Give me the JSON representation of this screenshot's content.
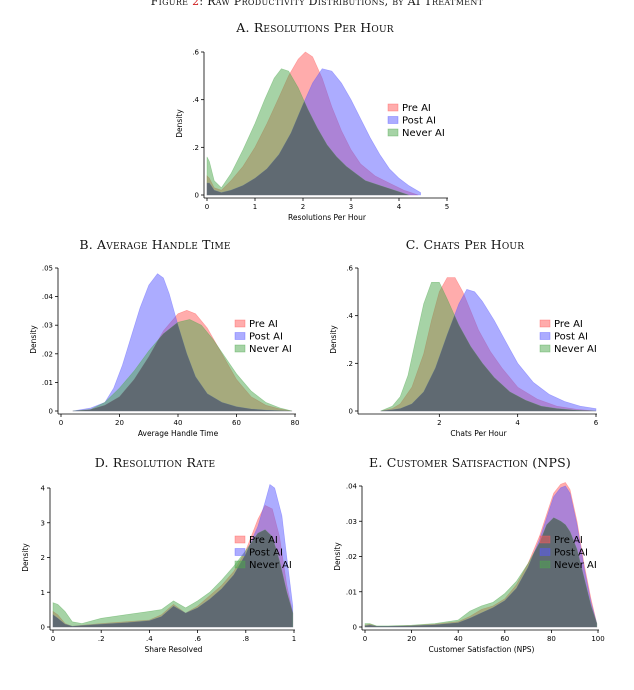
{
  "figure_title": {
    "prefix": "Figure",
    "number": "2",
    "text": ": Raw Productivity Distributions, by AI Treatment"
  },
  "colors": {
    "pre_ai": "#ff5a5a",
    "post_ai": "#5a5aff",
    "never_ai": "#4ea84e",
    "overlap": "#606a72"
  },
  "chart_data": [
    {
      "id": "A",
      "type": "area",
      "title": "A. Resolutions Per Hour",
      "xlabel": "Resolutions Per Hour",
      "ylabel": "Density",
      "xlim": [
        0,
        5
      ],
      "ylim": [
        0,
        0.6
      ],
      "xticks": [
        0,
        1,
        2,
        3,
        4,
        5
      ],
      "xticklabels": [
        "0",
        "1",
        "2",
        "3",
        "4",
        "5"
      ],
      "yticks": [
        0,
        0.2,
        0.4,
        0.6
      ],
      "yticklabels": [
        "0",
        ".2",
        ".4",
        ".6"
      ],
      "legend": [
        "Pre AI",
        "Post AI",
        "Never AI"
      ],
      "legend_position": "right",
      "series": [
        {
          "name": "Pre AI",
          "x": [
            0,
            0.05,
            0.15,
            0.3,
            0.5,
            0.75,
            1.0,
            1.25,
            1.5,
            1.7,
            1.9,
            2.05,
            2.2,
            2.4,
            2.6,
            2.8,
            3.0,
            3.2,
            3.5,
            3.8,
            4.1,
            4.4
          ],
          "y": [
            0.08,
            0.07,
            0.03,
            0.02,
            0.06,
            0.12,
            0.2,
            0.3,
            0.41,
            0.5,
            0.57,
            0.6,
            0.58,
            0.49,
            0.37,
            0.27,
            0.19,
            0.13,
            0.08,
            0.05,
            0.02,
            0.0
          ]
        },
        {
          "name": "Post AI",
          "x": [
            0,
            0.05,
            0.15,
            0.3,
            0.5,
            0.75,
            1.0,
            1.25,
            1.5,
            1.75,
            2.0,
            2.2,
            2.4,
            2.6,
            2.8,
            3.0,
            3.2,
            3.4,
            3.6,
            3.8,
            4.0,
            4.2,
            4.45
          ],
          "y": [
            0.05,
            0.05,
            0.02,
            0.01,
            0.02,
            0.04,
            0.07,
            0.11,
            0.17,
            0.26,
            0.38,
            0.47,
            0.53,
            0.52,
            0.47,
            0.4,
            0.32,
            0.24,
            0.17,
            0.11,
            0.07,
            0.04,
            0.01
          ]
        },
        {
          "name": "Never AI",
          "x": [
            0,
            0.05,
            0.15,
            0.3,
            0.5,
            0.75,
            1.0,
            1.2,
            1.4,
            1.55,
            1.7,
            1.9,
            2.1,
            2.3,
            2.5,
            2.7,
            2.9,
            3.1,
            3.3,
            3.6,
            3.9,
            4.2
          ],
          "y": [
            0.16,
            0.14,
            0.06,
            0.03,
            0.09,
            0.19,
            0.3,
            0.4,
            0.49,
            0.53,
            0.52,
            0.45,
            0.36,
            0.28,
            0.21,
            0.16,
            0.12,
            0.09,
            0.06,
            0.04,
            0.02,
            0.0
          ]
        }
      ]
    },
    {
      "id": "B",
      "type": "area",
      "title": "B. Average Handle Time",
      "xlabel": "Average Handle Time",
      "ylabel": "Density",
      "xlim": [
        0,
        80
      ],
      "ylim": [
        0,
        0.05
      ],
      "xticks": [
        0,
        20,
        40,
        60,
        80
      ],
      "xticklabels": [
        "0",
        "20",
        "40",
        "60",
        "80"
      ],
      "yticks": [
        0,
        0.01,
        0.02,
        0.03,
        0.04,
        0.05
      ],
      "yticklabels": [
        "0",
        ".01",
        ".02",
        ".03",
        ".04",
        ".05"
      ],
      "legend": [
        "Pre AI",
        "Post AI",
        "Never AI"
      ],
      "legend_position": "right",
      "series": [
        {
          "name": "Pre AI",
          "x": [
            4,
            10,
            15,
            20,
            25,
            30,
            35,
            40,
            43,
            46,
            50,
            55,
            60,
            65,
            70,
            75,
            79
          ],
          "y": [
            0.0,
            0.0005,
            0.002,
            0.005,
            0.011,
            0.019,
            0.028,
            0.034,
            0.0352,
            0.034,
            0.029,
            0.02,
            0.011,
            0.005,
            0.002,
            0.0007,
            0.0
          ]
        },
        {
          "name": "Post AI",
          "x": [
            4,
            10,
            15,
            18,
            21,
            24,
            27,
            30,
            33,
            35,
            37,
            40,
            43,
            46,
            50,
            55,
            60,
            65,
            70,
            75,
            79
          ],
          "y": [
            0.0,
            0.001,
            0.003,
            0.008,
            0.016,
            0.026,
            0.036,
            0.044,
            0.048,
            0.0465,
            0.041,
            0.03,
            0.02,
            0.012,
            0.006,
            0.003,
            0.0015,
            0.0007,
            0.0003,
            0.0001,
            0.0
          ]
        },
        {
          "name": "Never AI",
          "x": [
            4,
            10,
            15,
            20,
            25,
            30,
            35,
            40,
            44,
            48,
            52,
            56,
            60,
            65,
            70,
            75,
            79
          ],
          "y": [
            0.0,
            0.0005,
            0.003,
            0.008,
            0.014,
            0.021,
            0.027,
            0.031,
            0.032,
            0.03,
            0.025,
            0.019,
            0.013,
            0.007,
            0.003,
            0.001,
            0.0
          ]
        }
      ]
    },
    {
      "id": "C",
      "type": "area",
      "title": "C. Chats Per Hour",
      "xlabel": "Chats Per Hour",
      "ylabel": "Density",
      "xlim": [
        0,
        6
      ],
      "ylim": [
        0,
        0.6
      ],
      "xticks": [
        2,
        4,
        6
      ],
      "xticklabels": [
        "2",
        "4",
        "6"
      ],
      "yticks": [
        0,
        0.2,
        0.4,
        0.6
      ],
      "yticklabels": [
        "0",
        ".2",
        ".4",
        ".6"
      ],
      "legend": [
        "Pre AI",
        "Post AI",
        "Never AI"
      ],
      "legend_position": "right",
      "series": [
        {
          "name": "Pre AI",
          "x": [
            0.5,
            0.8,
            1.0,
            1.3,
            1.6,
            1.8,
            2.0,
            2.2,
            2.4,
            2.6,
            2.8,
            3.0,
            3.3,
            3.6,
            4.0,
            4.5,
            5.0,
            5.5,
            6.0
          ],
          "y": [
            0.0,
            0.01,
            0.03,
            0.1,
            0.24,
            0.38,
            0.5,
            0.56,
            0.56,
            0.5,
            0.42,
            0.34,
            0.25,
            0.18,
            0.1,
            0.05,
            0.02,
            0.007,
            0.0
          ]
        },
        {
          "name": "Post AI",
          "x": [
            0.5,
            0.8,
            1.0,
            1.3,
            1.6,
            1.9,
            2.2,
            2.5,
            2.7,
            2.9,
            3.1,
            3.4,
            3.7,
            4.0,
            4.4,
            4.8,
            5.2,
            5.6,
            6.0
          ],
          "y": [
            0.0,
            0.005,
            0.01,
            0.03,
            0.08,
            0.18,
            0.32,
            0.45,
            0.51,
            0.5,
            0.46,
            0.38,
            0.29,
            0.2,
            0.12,
            0.07,
            0.04,
            0.02,
            0.01
          ]
        },
        {
          "name": "Never AI",
          "x": [
            0.5,
            0.8,
            1.0,
            1.2,
            1.4,
            1.6,
            1.8,
            2.0,
            2.2,
            2.5,
            2.8,
            3.1,
            3.4,
            3.8,
            4.2,
            4.6,
            5.0,
            5.5,
            6.0
          ],
          "y": [
            0.0,
            0.02,
            0.06,
            0.15,
            0.3,
            0.45,
            0.54,
            0.54,
            0.47,
            0.36,
            0.27,
            0.2,
            0.14,
            0.08,
            0.045,
            0.02,
            0.01,
            0.003,
            0.0
          ]
        }
      ]
    },
    {
      "id": "D",
      "type": "area",
      "title": "D. Resolution Rate",
      "xlabel": "Share Resolved",
      "ylabel": "Density",
      "xlim": [
        0,
        1
      ],
      "ylim": [
        0,
        4
      ],
      "xticks": [
        0,
        0.2,
        0.4,
        0.6,
        0.8,
        1
      ],
      "xticklabels": [
        "0",
        ".2",
        ".4",
        ".6",
        ".8",
        "1"
      ],
      "yticks": [
        0,
        1,
        2,
        3,
        4
      ],
      "yticklabels": [
        "0",
        "1",
        "2",
        "3",
        "4"
      ],
      "legend": [
        "Pre AI",
        "Post AI",
        "Never AI"
      ],
      "legend_position": "right",
      "series": [
        {
          "name": "Pre AI",
          "x": [
            0,
            0.02,
            0.05,
            0.08,
            0.12,
            0.2,
            0.3,
            0.4,
            0.45,
            0.5,
            0.55,
            0.6,
            0.65,
            0.7,
            0.75,
            0.8,
            0.85,
            0.88,
            0.91,
            0.94,
            0.97,
            0.995
          ],
          "y": [
            0.45,
            0.35,
            0.1,
            0.02,
            0.05,
            0.1,
            0.15,
            0.2,
            0.35,
            0.65,
            0.4,
            0.6,
            0.9,
            1.2,
            1.6,
            2.2,
            3.1,
            3.5,
            3.4,
            2.6,
            1.2,
            0.4
          ]
        },
        {
          "name": "Post AI",
          "x": [
            0,
            0.02,
            0.05,
            0.08,
            0.12,
            0.2,
            0.3,
            0.4,
            0.45,
            0.5,
            0.55,
            0.6,
            0.65,
            0.7,
            0.75,
            0.8,
            0.85,
            0.88,
            0.9,
            0.92,
            0.95,
            0.97,
            0.995
          ],
          "y": [
            0.35,
            0.25,
            0.08,
            0.02,
            0.04,
            0.08,
            0.12,
            0.18,
            0.3,
            0.6,
            0.4,
            0.55,
            0.8,
            1.1,
            1.5,
            2.1,
            2.9,
            3.6,
            4.1,
            4.0,
            3.2,
            2.0,
            0.6
          ]
        },
        {
          "name": "Never AI",
          "x": [
            0,
            0.02,
            0.05,
            0.08,
            0.12,
            0.2,
            0.3,
            0.4,
            0.45,
            0.5,
            0.55,
            0.6,
            0.65,
            0.7,
            0.75,
            0.8,
            0.85,
            0.88,
            0.91,
            0.94,
            0.97,
            0.995
          ],
          "y": [
            0.7,
            0.65,
            0.45,
            0.15,
            0.1,
            0.25,
            0.35,
            0.45,
            0.5,
            0.75,
            0.55,
            0.75,
            1.0,
            1.35,
            1.75,
            2.2,
            2.7,
            2.8,
            2.6,
            1.9,
            1.0,
            0.4
          ]
        }
      ]
    },
    {
      "id": "E",
      "type": "area",
      "title": "E. Customer Satisfaction (NPS)",
      "xlabel": "Customer Satisfaction (NPS)",
      "ylabel": "Density",
      "xlim": [
        0,
        100
      ],
      "ylim": [
        0,
        0.04
      ],
      "xticks": [
        0,
        20,
        40,
        60,
        80,
        100
      ],
      "xticklabels": [
        "0",
        "20",
        "40",
        "60",
        "80",
        "100"
      ],
      "yticks": [
        0,
        0.01,
        0.02,
        0.03,
        0.04
      ],
      "yticklabels": [
        "0",
        ".01",
        ".02",
        ".03",
        ".04"
      ],
      "legend": [
        "Pre AI",
        "Post AI",
        "Never AI"
      ],
      "legend_position": "right",
      "series": [
        {
          "name": "Pre AI",
          "x": [
            0,
            2,
            5,
            10,
            20,
            30,
            40,
            45,
            50,
            55,
            60,
            65,
            70,
            75,
            78,
            81,
            84,
            86,
            88,
            91,
            94,
            97,
            99.5
          ],
          "y": [
            0.0005,
            0.0008,
            0.0002,
            0.0002,
            0.0004,
            0.0008,
            0.0015,
            0.003,
            0.005,
            0.006,
            0.008,
            0.012,
            0.018,
            0.026,
            0.032,
            0.038,
            0.0405,
            0.041,
            0.039,
            0.03,
            0.018,
            0.008,
            0.001
          ]
        },
        {
          "name": "Post AI",
          "x": [
            0,
            2,
            5,
            10,
            20,
            30,
            40,
            45,
            50,
            55,
            60,
            65,
            70,
            75,
            78,
            81,
            84,
            86,
            88,
            91,
            94,
            97,
            99.5
          ],
          "y": [
            0.0003,
            0.0005,
            0.0002,
            0.0002,
            0.0003,
            0.0006,
            0.0012,
            0.0025,
            0.004,
            0.0055,
            0.0075,
            0.011,
            0.017,
            0.025,
            0.031,
            0.037,
            0.0395,
            0.04,
            0.038,
            0.029,
            0.017,
            0.007,
            0.001
          ]
        },
        {
          "name": "Never AI",
          "x": [
            0,
            2,
            5,
            10,
            20,
            30,
            40,
            45,
            50,
            55,
            60,
            65,
            70,
            75,
            78,
            81,
            84,
            86,
            88,
            91,
            94,
            97,
            99.5
          ],
          "y": [
            0.001,
            0.001,
            0.0003,
            0.0003,
            0.0005,
            0.001,
            0.002,
            0.0045,
            0.006,
            0.007,
            0.0095,
            0.013,
            0.018,
            0.024,
            0.029,
            0.031,
            0.03,
            0.029,
            0.027,
            0.022,
            0.014,
            0.006,
            0.001
          ]
        }
      ]
    }
  ]
}
